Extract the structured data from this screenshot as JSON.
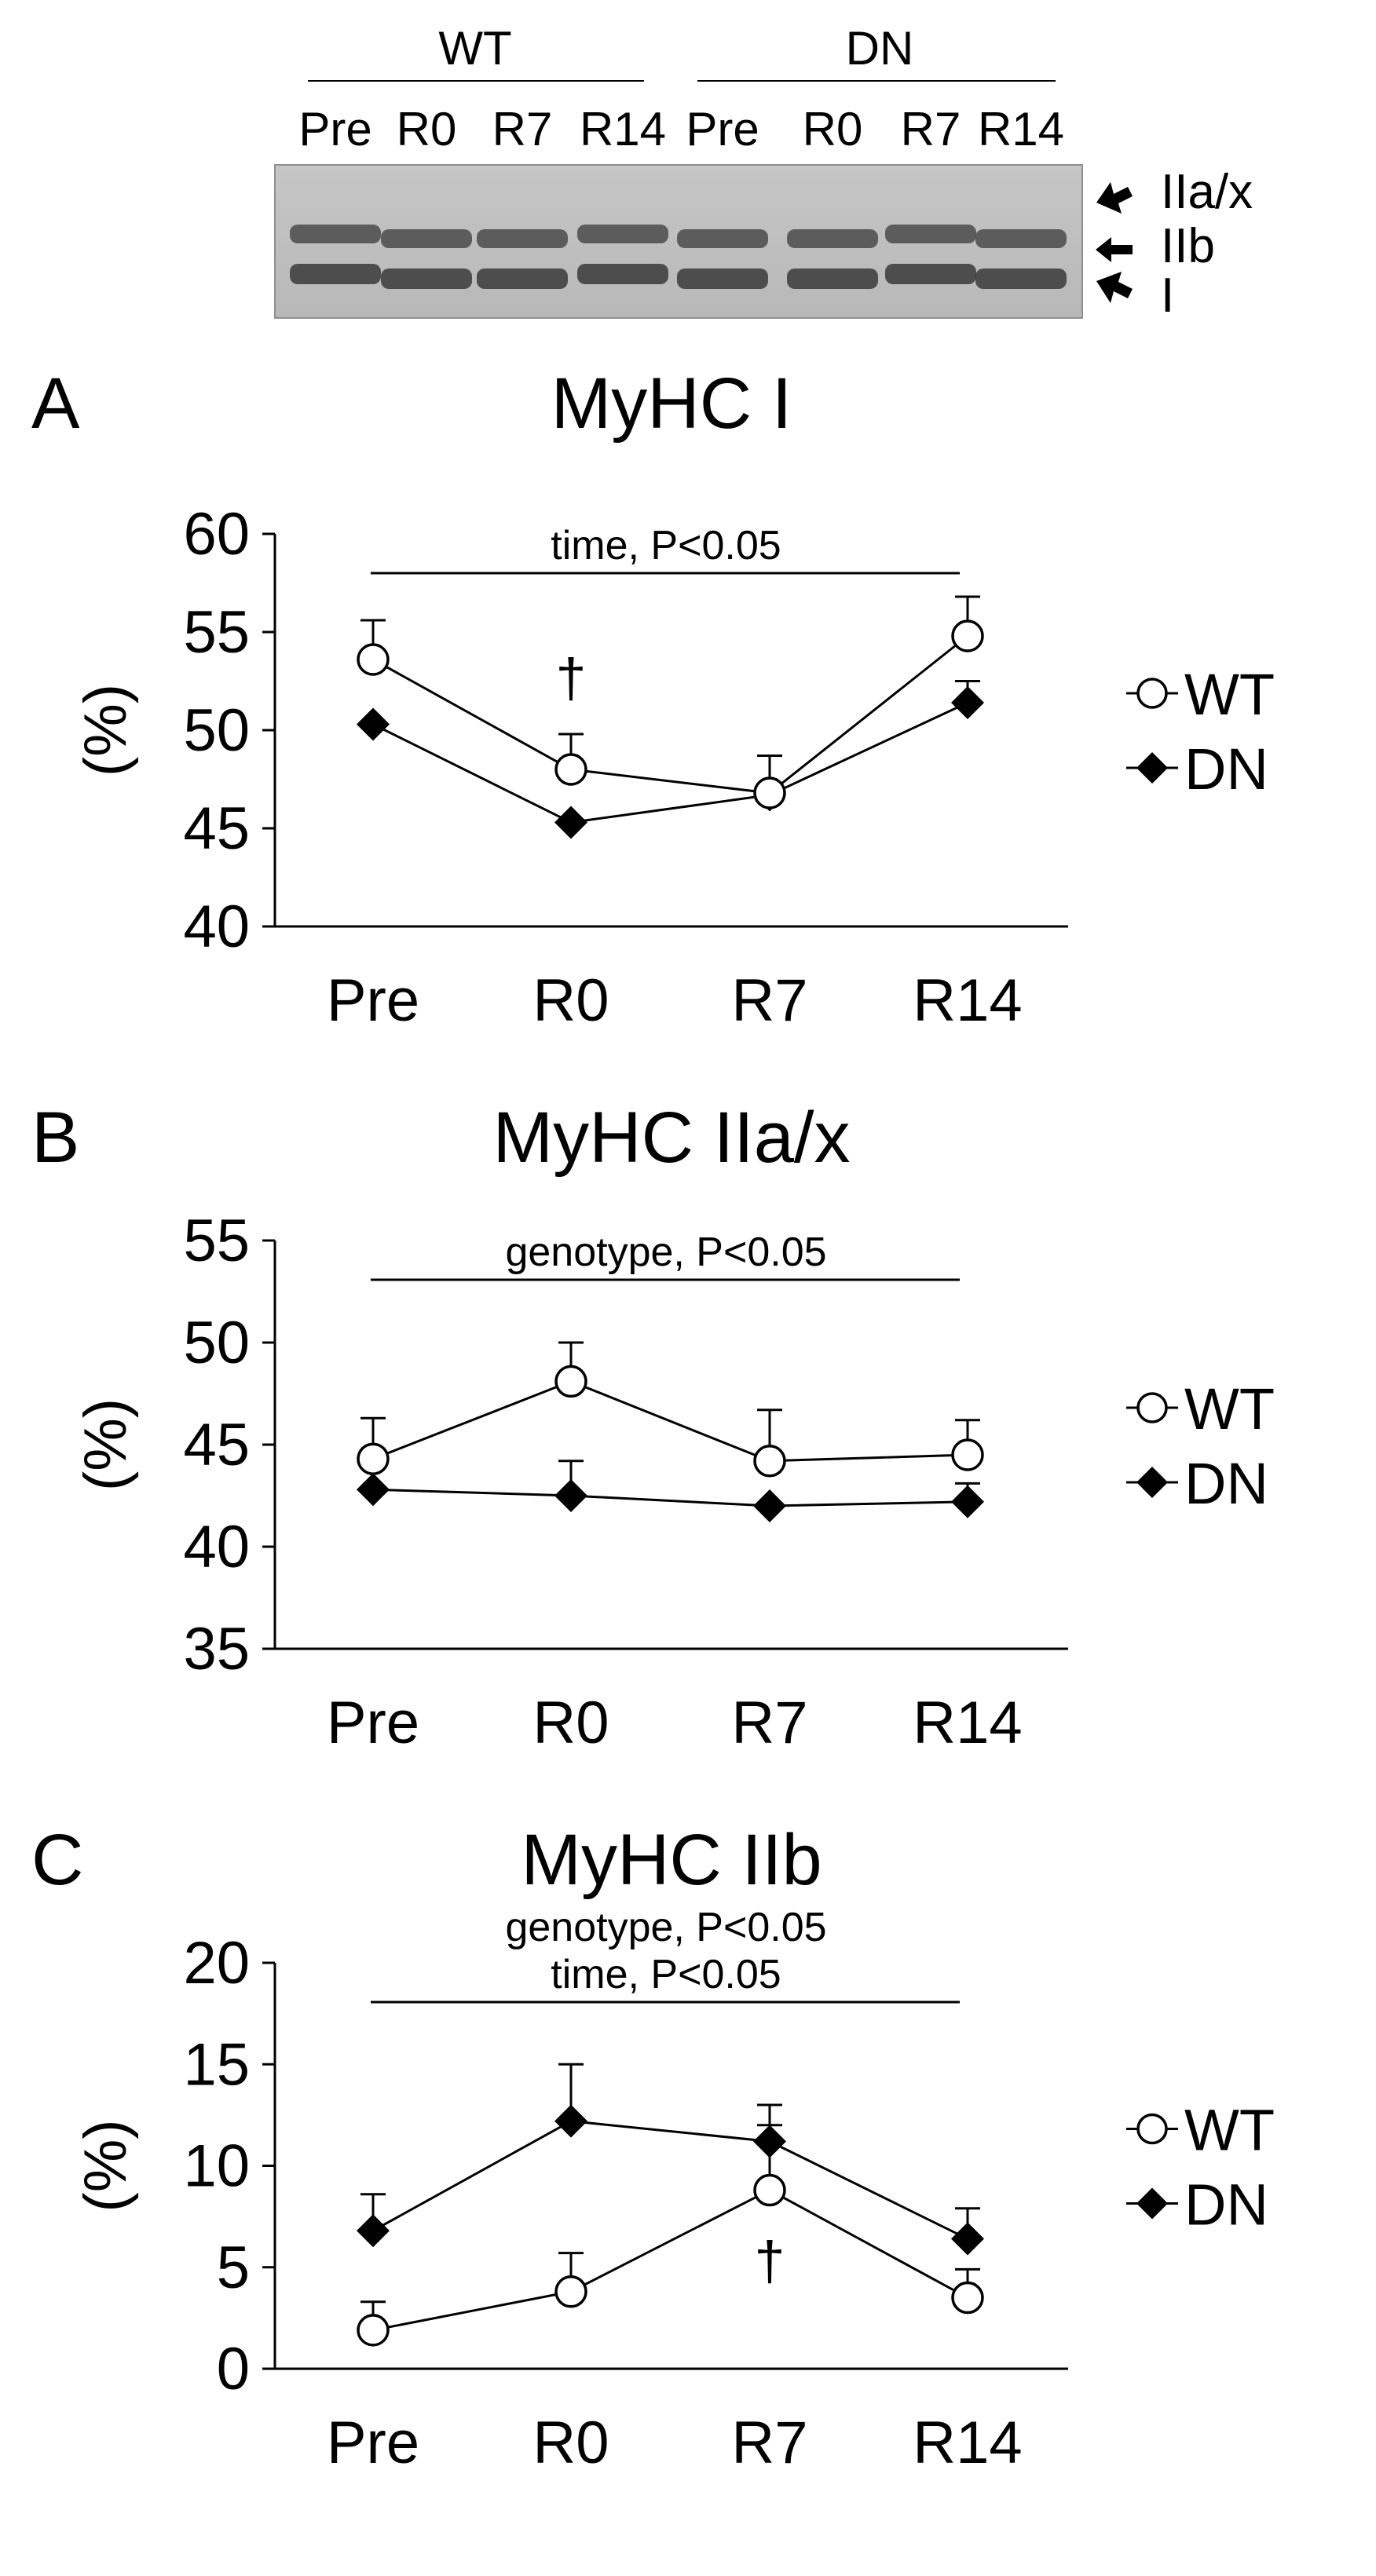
{
  "blot": {
    "groups": [
      {
        "name": "WT",
        "lanes": [
          "Pre",
          "R0",
          "R7",
          "R14"
        ]
      },
      {
        "name": "DN",
        "lanes": [
          "Pre",
          "R0",
          "R7",
          "R14"
        ]
      }
    ],
    "bands": [
      "IIa/x",
      "IIb",
      "I"
    ]
  },
  "legend": {
    "wt": "WT",
    "dn": "DN"
  },
  "chart_data": [
    {
      "panel": "A",
      "type": "line",
      "title": "MyHC I",
      "ylabel": "(%)",
      "ylim": [
        40,
        60
      ],
      "yticks": [
        40,
        45,
        50,
        55,
        60
      ],
      "categories": [
        "Pre",
        "R0",
        "R7",
        "R14"
      ],
      "series": [
        {
          "name": "WT",
          "marker": "open-circle",
          "values": [
            53.6,
            48.0,
            46.8,
            54.8
          ],
          "errors": [
            2.0,
            1.8,
            1.9,
            2.0
          ]
        },
        {
          "name": "DN",
          "marker": "filled-diamond",
          "values": [
            50.3,
            45.3,
            46.7,
            51.4
          ],
          "errors": [
            0,
            0,
            0,
            1.1
          ]
        }
      ],
      "annotations": [
        "time, P<0.05"
      ],
      "markers": [
        {
          "category": "R0",
          "symbol": "†"
        }
      ]
    },
    {
      "panel": "B",
      "type": "line",
      "title": "MyHC IIa/x",
      "ylabel": "(%)",
      "ylim": [
        35,
        55
      ],
      "yticks": [
        35,
        40,
        45,
        50,
        55
      ],
      "categories": [
        "Pre",
        "R0",
        "R7",
        "R14"
      ],
      "series": [
        {
          "name": "WT",
          "marker": "open-circle",
          "values": [
            44.3,
            48.1,
            44.2,
            44.5
          ],
          "errors": [
            2.0,
            1.9,
            2.5,
            1.7
          ]
        },
        {
          "name": "DN",
          "marker": "filled-diamond",
          "values": [
            42.8,
            42.5,
            42.0,
            42.2
          ],
          "errors": [
            0,
            1.7,
            0,
            0.9
          ]
        }
      ],
      "annotations": [
        "genotype, P<0.05"
      ],
      "markers": []
    },
    {
      "panel": "C",
      "type": "line",
      "title": "MyHC IIb",
      "ylabel": "(%)",
      "ylim": [
        0,
        20
      ],
      "yticks": [
        0,
        5,
        10,
        15,
        20
      ],
      "categories": [
        "Pre",
        "R0",
        "R7",
        "R14"
      ],
      "series": [
        {
          "name": "WT",
          "marker": "open-circle",
          "values": [
            1.9,
            3.8,
            8.8,
            3.5
          ],
          "errors": [
            1.4,
            1.9,
            3.2,
            1.4
          ]
        },
        {
          "name": "DN",
          "marker": "filled-diamond",
          "values": [
            6.8,
            12.2,
            11.2,
            6.4
          ],
          "errors": [
            1.8,
            2.8,
            1.8,
            1.5
          ]
        }
      ],
      "annotations": [
        "genotype, P<0.05",
        "time, P<0.05"
      ],
      "markers": [
        {
          "category": "R7",
          "symbol": "†"
        }
      ]
    }
  ]
}
